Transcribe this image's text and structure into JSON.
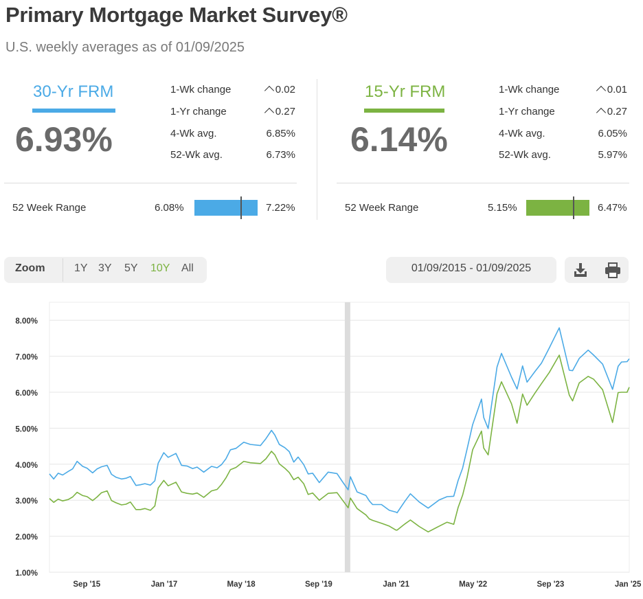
{
  "header": {
    "title": "Primary Mortgage Market Survey®",
    "subtitle": "U.S. weekly averages as of 01/09/2025"
  },
  "colors": {
    "frm30": "#4baae6",
    "frm15": "#7cb342",
    "accent_zoom": "#7cb342"
  },
  "frm30": {
    "name": "30-Yr FRM",
    "rate": "6.93%",
    "stats": [
      {
        "label": "1-Wk change",
        "value": "0.02",
        "icon": "caret-up-icon"
      },
      {
        "label": "1-Yr change",
        "value": "0.27",
        "icon": "caret-up-icon"
      },
      {
        "label": "4-Wk avg.",
        "value": "6.85%"
      },
      {
        "label": "52-Wk avg.",
        "value": "6.73%"
      }
    ],
    "range": {
      "label": "52 Week Range",
      "low": "6.08%",
      "high": "7.22%",
      "current_fraction": 0.74
    }
  },
  "frm15": {
    "name": "15-Yr FRM",
    "rate": "6.14%",
    "stats": [
      {
        "label": "1-Wk change",
        "value": "0.01",
        "icon": "caret-up-icon"
      },
      {
        "label": "1-Yr change",
        "value": "0.27",
        "icon": "caret-up-icon"
      },
      {
        "label": "4-Wk avg.",
        "value": "6.05%"
      },
      {
        "label": "52-Wk avg.",
        "value": "5.97%"
      }
    ],
    "range": {
      "label": "52 Week Range",
      "low": "5.15%",
      "high": "6.47%",
      "current_fraction": 0.75
    }
  },
  "toolbar": {
    "zoom_label": "Zoom",
    "zoom_options": [
      "1Y",
      "3Y",
      "5Y",
      "10Y",
      "All"
    ],
    "zoom_selected": "10Y",
    "date_range": "01/09/2015 - 01/09/2025",
    "download_icon": "download-icon",
    "print_icon": "print-icon"
  },
  "chart_data": {
    "type": "line",
    "title": "",
    "xlabel": "",
    "ylabel": "",
    "ylim": [
      1.0,
      8.5
    ],
    "y_ticks": [
      "1.00%",
      "2.00%",
      "3.00%",
      "4.00%",
      "5.00%",
      "6.00%",
      "7.00%",
      "8.00%"
    ],
    "x_ticks": [
      {
        "label": "Sep '15",
        "date": "2015-09-01"
      },
      {
        "label": "Jan '17",
        "date": "2017-01-01"
      },
      {
        "label": "May '18",
        "date": "2018-05-01"
      },
      {
        "label": "Sep '19",
        "date": "2019-09-01"
      },
      {
        "label": "Jan '21",
        "date": "2021-01-01"
      },
      {
        "label": "May '22",
        "date": "2022-05-01"
      },
      {
        "label": "Sep '23",
        "date": "2023-09-01"
      },
      {
        "label": "Jan '25",
        "date": "2025-01-01"
      }
    ],
    "xlim": [
      "2015-01-09",
      "2025-01-09"
    ],
    "highlight_band_date": "2020-03-01",
    "grid": true,
    "series": [
      {
        "key": "frm30",
        "points": [
          [
            "2015-01-09",
            3.73
          ],
          [
            "2015-02-05",
            3.59
          ],
          [
            "2015-03-05",
            3.75
          ],
          [
            "2015-04-02",
            3.7
          ],
          [
            "2015-05-07",
            3.8
          ],
          [
            "2015-06-04",
            3.87
          ],
          [
            "2015-07-02",
            4.08
          ],
          [
            "2015-08-06",
            3.94
          ],
          [
            "2015-09-03",
            3.89
          ],
          [
            "2015-10-08",
            3.76
          ],
          [
            "2015-11-05",
            3.87
          ],
          [
            "2015-12-03",
            3.93
          ],
          [
            "2016-01-07",
            3.97
          ],
          [
            "2016-02-04",
            3.72
          ],
          [
            "2016-03-03",
            3.64
          ],
          [
            "2016-04-07",
            3.59
          ],
          [
            "2016-05-05",
            3.61
          ],
          [
            "2016-06-02",
            3.66
          ],
          [
            "2016-07-07",
            3.41
          ],
          [
            "2016-08-04",
            3.43
          ],
          [
            "2016-09-01",
            3.46
          ],
          [
            "2016-10-06",
            3.42
          ],
          [
            "2016-11-03",
            3.54
          ],
          [
            "2016-11-24",
            4.03
          ],
          [
            "2016-12-29",
            4.32
          ],
          [
            "2017-01-26",
            4.19
          ],
          [
            "2017-03-16",
            4.3
          ],
          [
            "2017-04-20",
            3.97
          ],
          [
            "2017-05-25",
            3.95
          ],
          [
            "2017-06-29",
            3.88
          ],
          [
            "2017-07-27",
            3.92
          ],
          [
            "2017-09-07",
            3.78
          ],
          [
            "2017-10-26",
            3.94
          ],
          [
            "2017-11-30",
            3.9
          ],
          [
            "2017-12-28",
            3.99
          ],
          [
            "2018-01-25",
            4.15
          ],
          [
            "2018-02-22",
            4.4
          ],
          [
            "2018-03-29",
            4.44
          ],
          [
            "2018-05-17",
            4.61
          ],
          [
            "2018-06-28",
            4.55
          ],
          [
            "2018-08-30",
            4.52
          ],
          [
            "2018-10-04",
            4.71
          ],
          [
            "2018-11-08",
            4.94
          ],
          [
            "2018-11-29",
            4.81
          ],
          [
            "2018-12-27",
            4.55
          ],
          [
            "2019-01-31",
            4.46
          ],
          [
            "2019-02-28",
            4.35
          ],
          [
            "2019-03-28",
            4.06
          ],
          [
            "2019-04-25",
            4.2
          ],
          [
            "2019-05-30",
            3.99
          ],
          [
            "2019-06-27",
            3.73
          ],
          [
            "2019-07-25",
            3.75
          ],
          [
            "2019-09-05",
            3.49
          ],
          [
            "2019-10-31",
            3.78
          ],
          [
            "2019-12-26",
            3.74
          ],
          [
            "2020-01-30",
            3.51
          ],
          [
            "2020-03-05",
            3.29
          ],
          [
            "2020-03-19",
            3.65
          ],
          [
            "2020-04-30",
            3.23
          ],
          [
            "2020-06-25",
            3.13
          ],
          [
            "2020-07-16",
            2.98
          ],
          [
            "2020-08-06",
            2.88
          ],
          [
            "2020-10-01",
            2.88
          ],
          [
            "2020-11-19",
            2.72
          ],
          [
            "2020-12-31",
            2.67
          ],
          [
            "2021-01-07",
            2.65
          ],
          [
            "2021-02-25",
            2.97
          ],
          [
            "2021-04-01",
            3.18
          ],
          [
            "2021-05-27",
            2.95
          ],
          [
            "2021-07-22",
            2.78
          ],
          [
            "2021-09-30",
            3.01
          ],
          [
            "2021-11-18",
            3.1
          ],
          [
            "2021-12-30",
            3.11
          ],
          [
            "2022-01-27",
            3.55
          ],
          [
            "2022-02-24",
            3.89
          ],
          [
            "2022-03-24",
            4.42
          ],
          [
            "2022-04-28",
            5.1
          ],
          [
            "2022-06-23",
            5.81
          ],
          [
            "2022-07-07",
            5.3
          ],
          [
            "2022-08-04",
            4.99
          ],
          [
            "2022-09-29",
            6.7
          ],
          [
            "2022-10-27",
            7.08
          ],
          [
            "2022-12-29",
            6.42
          ],
          [
            "2023-02-02",
            6.09
          ],
          [
            "2023-03-09",
            6.73
          ],
          [
            "2023-04-06",
            6.28
          ],
          [
            "2023-05-25",
            6.57
          ],
          [
            "2023-07-06",
            6.81
          ],
          [
            "2023-08-24",
            7.23
          ],
          [
            "2023-10-26",
            7.79
          ],
          [
            "2023-12-28",
            6.61
          ],
          [
            "2024-01-18",
            6.6
          ],
          [
            "2024-02-29",
            6.94
          ],
          [
            "2024-04-25",
            7.17
          ],
          [
            "2024-05-30",
            7.03
          ],
          [
            "2024-07-25",
            6.78
          ],
          [
            "2024-09-26",
            6.08
          ],
          [
            "2024-10-31",
            6.72
          ],
          [
            "2024-11-21",
            6.84
          ],
          [
            "2024-12-26",
            6.85
          ],
          [
            "2025-01-09",
            6.93
          ]
        ]
      },
      {
        "key": "frm15",
        "points": [
          [
            "2015-01-09",
            3.05
          ],
          [
            "2015-02-05",
            2.94
          ],
          [
            "2015-03-05",
            3.03
          ],
          [
            "2015-04-02",
            2.98
          ],
          [
            "2015-05-07",
            3.02
          ],
          [
            "2015-06-04",
            3.09
          ],
          [
            "2015-07-02",
            3.22
          ],
          [
            "2015-08-06",
            3.13
          ],
          [
            "2015-09-03",
            3.1
          ],
          [
            "2015-10-08",
            2.99
          ],
          [
            "2015-11-05",
            3.09
          ],
          [
            "2015-12-03",
            3.21
          ],
          [
            "2016-01-07",
            3.26
          ],
          [
            "2016-02-04",
            2.99
          ],
          [
            "2016-03-03",
            2.93
          ],
          [
            "2016-04-07",
            2.87
          ],
          [
            "2016-05-05",
            2.89
          ],
          [
            "2016-06-02",
            2.95
          ],
          [
            "2016-07-07",
            2.74
          ],
          [
            "2016-08-04",
            2.74
          ],
          [
            "2016-09-01",
            2.77
          ],
          [
            "2016-10-06",
            2.72
          ],
          [
            "2016-11-03",
            2.84
          ],
          [
            "2016-11-24",
            3.34
          ],
          [
            "2016-12-29",
            3.55
          ],
          [
            "2017-01-26",
            3.4
          ],
          [
            "2017-03-16",
            3.5
          ],
          [
            "2017-04-20",
            3.23
          ],
          [
            "2017-05-25",
            3.19
          ],
          [
            "2017-06-29",
            3.17
          ],
          [
            "2017-07-27",
            3.2
          ],
          [
            "2017-09-07",
            3.08
          ],
          [
            "2017-10-26",
            3.26
          ],
          [
            "2017-11-30",
            3.3
          ],
          [
            "2017-12-28",
            3.44
          ],
          [
            "2018-01-25",
            3.62
          ],
          [
            "2018-02-22",
            3.85
          ],
          [
            "2018-03-29",
            3.91
          ],
          [
            "2018-05-17",
            4.08
          ],
          [
            "2018-06-28",
            4.04
          ],
          [
            "2018-08-30",
            4.02
          ],
          [
            "2018-10-04",
            4.15
          ],
          [
            "2018-11-08",
            4.36
          ],
          [
            "2018-11-29",
            4.26
          ],
          [
            "2018-12-27",
            4.01
          ],
          [
            "2019-01-31",
            3.89
          ],
          [
            "2019-02-28",
            3.77
          ],
          [
            "2019-03-28",
            3.57
          ],
          [
            "2019-04-25",
            3.64
          ],
          [
            "2019-05-30",
            3.46
          ],
          [
            "2019-06-27",
            3.16
          ],
          [
            "2019-07-25",
            3.2
          ],
          [
            "2019-09-05",
            3.0
          ],
          [
            "2019-10-31",
            3.19
          ],
          [
            "2019-12-26",
            3.21
          ],
          [
            "2020-01-30",
            3.0
          ],
          [
            "2020-03-05",
            2.79
          ],
          [
            "2020-03-19",
            3.06
          ],
          [
            "2020-04-30",
            2.77
          ],
          [
            "2020-06-25",
            2.59
          ],
          [
            "2020-07-16",
            2.48
          ],
          [
            "2020-08-06",
            2.44
          ],
          [
            "2020-10-01",
            2.36
          ],
          [
            "2020-11-19",
            2.28
          ],
          [
            "2020-12-31",
            2.17
          ],
          [
            "2021-01-07",
            2.17
          ],
          [
            "2021-02-25",
            2.34
          ],
          [
            "2021-04-01",
            2.45
          ],
          [
            "2021-05-27",
            2.27
          ],
          [
            "2021-07-22",
            2.12
          ],
          [
            "2021-09-30",
            2.28
          ],
          [
            "2021-11-18",
            2.39
          ],
          [
            "2021-12-30",
            2.33
          ],
          [
            "2022-01-27",
            2.8
          ],
          [
            "2022-02-24",
            3.14
          ],
          [
            "2022-03-24",
            3.63
          ],
          [
            "2022-04-28",
            4.4
          ],
          [
            "2022-06-23",
            4.92
          ],
          [
            "2022-07-07",
            4.45
          ],
          [
            "2022-08-04",
            4.26
          ],
          [
            "2022-09-29",
            5.96
          ],
          [
            "2022-10-27",
            6.29
          ],
          [
            "2022-12-29",
            5.68
          ],
          [
            "2023-02-02",
            5.14
          ],
          [
            "2023-03-09",
            5.95
          ],
          [
            "2023-04-06",
            5.64
          ],
          [
            "2023-05-25",
            5.97
          ],
          [
            "2023-07-06",
            6.24
          ],
          [
            "2023-08-24",
            6.55
          ],
          [
            "2023-10-26",
            7.03
          ],
          [
            "2023-12-28",
            5.92
          ],
          [
            "2024-01-18",
            5.76
          ],
          [
            "2024-02-29",
            6.26
          ],
          [
            "2024-04-25",
            6.44
          ],
          [
            "2024-05-30",
            6.36
          ],
          [
            "2024-07-25",
            6.07
          ],
          [
            "2024-09-26",
            5.16
          ],
          [
            "2024-10-31",
            5.99
          ],
          [
            "2024-11-21",
            6.0
          ],
          [
            "2024-12-26",
            6.0
          ],
          [
            "2025-01-09",
            6.14
          ]
        ]
      }
    ]
  }
}
